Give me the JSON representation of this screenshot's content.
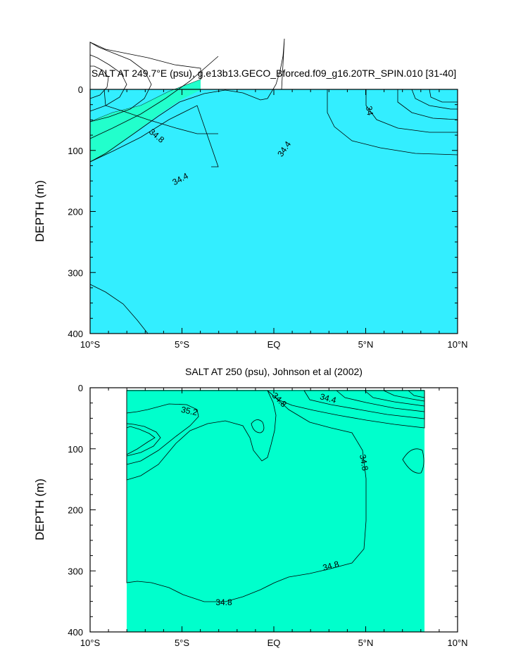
{
  "chart_data": [
    {
      "type": "contour",
      "title": "SALT AT 249.7°E (psu), g.e13b13.GECO_Bforced.f09_g16.20TR_SPIN.010 [31-40]",
      "ylabel": "DEPTH (m)",
      "xlim": [
        -10,
        10
      ],
      "ylim": [
        0,
        400
      ],
      "y_reversed": true,
      "x_ticks": [
        {
          "value": -10,
          "label": "10°S"
        },
        {
          "value": -5,
          "label": "5°S"
        },
        {
          "value": 0,
          "label": "EQ"
        },
        {
          "value": 5,
          "label": "5°N"
        },
        {
          "value": 10,
          "label": "10°N"
        }
      ],
      "y_ticks": [
        0,
        100,
        200,
        300,
        400
      ],
      "contour_labels": [
        {
          "text": "34.8",
          "x": -6.4,
          "y": 80,
          "angle": 40
        },
        {
          "text": "34.4",
          "x": 0.5,
          "y": 95,
          "angle": -55
        },
        {
          "text": "34.4",
          "x": -4.9,
          "y": 148,
          "angle": -28
        },
        {
          "text": "34",
          "x": 5.1,
          "y": 37,
          "angle": 80
        }
      ]
    },
    {
      "type": "contour",
      "title": "SALT AT 250 (psu), Johnson et al (2002)",
      "ylabel": "DEPTH (m)",
      "xlim": [
        -10,
        10
      ],
      "ylim": [
        0,
        400
      ],
      "y_reversed": true,
      "data_extent_x": [
        -8,
        8.2
      ],
      "data_extent_y": [
        5,
        400
      ],
      "x_ticks": [
        {
          "value": -10,
          "label": "10°S"
        },
        {
          "value": -5,
          "label": "5°S"
        },
        {
          "value": 0,
          "label": "EQ"
        },
        {
          "value": 5,
          "label": "5°N"
        },
        {
          "value": 10,
          "label": "10°N"
        }
      ],
      "y_ticks": [
        0,
        100,
        200,
        300,
        400
      ],
      "contour_labels": [
        {
          "text": "35.2",
          "x": -5.5,
          "y": 40,
          "angle": 12
        },
        {
          "text": "34.8",
          "x": 0.2,
          "y": 20,
          "angle": -45
        },
        {
          "text": "34.4",
          "x": 3,
          "y": 20,
          "angle": 15
        },
        {
          "text": "34.8",
          "x": 5,
          "y": 125,
          "angle": 80
        },
        {
          "text": "34.8",
          "x": 3.2,
          "y": 297,
          "angle": -15
        },
        {
          "text": "34.8",
          "x": -2.7,
          "y": 352,
          "angle": 0
        }
      ]
    }
  ]
}
